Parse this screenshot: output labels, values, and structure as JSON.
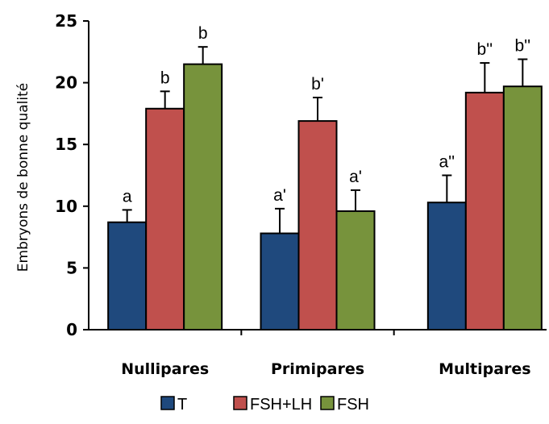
{
  "chart_data": {
    "type": "bar",
    "title": "",
    "xlabel": "",
    "ylabel": "Embryons de bonne qualité",
    "ylim": [
      0,
      25
    ],
    "yticks": [
      "0",
      "5",
      "10",
      "15",
      "20",
      "25"
    ],
    "categories": [
      "Nullipares",
      "Primipares",
      "Multipares"
    ],
    "series": [
      {
        "name": "T",
        "color": "#1f497d",
        "values": [
          8.7,
          7.8,
          10.3
        ],
        "errors": [
          1.0,
          2.0,
          2.2
        ],
        "labels": [
          "a",
          "a'",
          "a''"
        ]
      },
      {
        "name": "FSH+LH",
        "color": "#c0504d",
        "values": [
          17.9,
          16.9,
          19.2
        ],
        "errors": [
          1.4,
          1.9,
          2.4
        ],
        "labels": [
          "b",
          "b'",
          "b''"
        ]
      },
      {
        "name": "FSH",
        "color": "#77933c",
        "values": [
          21.5,
          9.6,
          19.7
        ],
        "errors": [
          1.4,
          1.7,
          2.2
        ],
        "labels": [
          "b",
          "a'",
          "b''"
        ]
      }
    ],
    "grid": false,
    "legend": "bottom"
  }
}
